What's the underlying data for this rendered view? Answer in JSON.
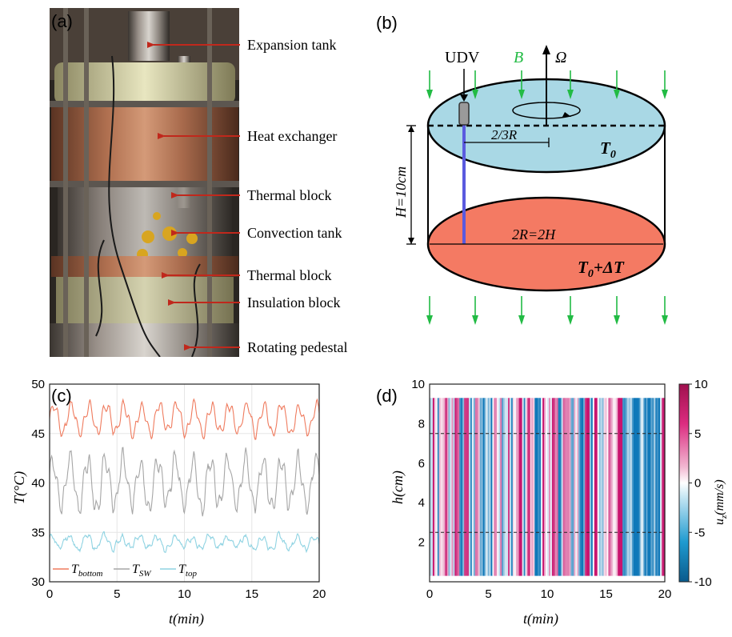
{
  "panels": {
    "a": "(a)",
    "b": "(b)",
    "c": "(c)",
    "d": "(d)"
  },
  "photo_labels": [
    "Expansion tank",
    "Heat exchanger",
    "Thermal block",
    "Convection tank",
    "Thermal block",
    "Insulation block",
    "Rotating pedestal"
  ],
  "schematic": {
    "udv": "UDV",
    "b_field": "B",
    "omega": "Ω",
    "radius": "2/3R",
    "height": "H=10cm",
    "diameter": "2R=2H",
    "t_top": "T",
    "t_top_sub": "0",
    "t_bottom": "T",
    "t_bottom_sub": "0",
    "t_bottom_suffix": "+ΔT"
  },
  "colors": {
    "top_fluid": "#a9d8e5",
    "bottom_fluid": "#f47a63",
    "field_arrow": "#22bb44",
    "probe": "#5a5adf",
    "arrow_red": "#c0281c",
    "t_bottom": "#ef7b5e",
    "t_sw": "#a6a6a6",
    "t_top": "#8fd3e2"
  },
  "chart_data": [
    {
      "type": "line",
      "title": "",
      "xlabel": "t(min)",
      "ylabel": "T(°C)",
      "xlim": [
        0,
        20
      ],
      "ylim": [
        30,
        50
      ],
      "xticks": [
        0,
        5,
        10,
        15,
        20
      ],
      "yticks": [
        30,
        35,
        40,
        45,
        50
      ],
      "grid": true,
      "legend_position": "bottom-left",
      "series": [
        {
          "name": "T_bottom",
          "label_main": "T",
          "label_sub": "bottom",
          "mean": 46.5,
          "amplitude": 1.4,
          "period": 1.3
        },
        {
          "name": "T_SW",
          "label_main": "T",
          "label_sub": "SW",
          "mean": 40.0,
          "amplitude": 2.4,
          "period": 1.3
        },
        {
          "name": "T_top",
          "label_main": "T",
          "label_sub": "top",
          "mean": 34.0,
          "amplitude": 0.6,
          "period": 1.3
        }
      ]
    },
    {
      "type": "heatmap",
      "title": "",
      "xlabel": "t(min)",
      "ylabel": "h(cm)",
      "xlim": [
        0,
        20
      ],
      "ylim": [
        0,
        10
      ],
      "xticks": [
        0,
        5,
        10,
        15,
        20
      ],
      "yticks": [
        2,
        4,
        6,
        8,
        10
      ],
      "data_hrange": [
        0.3,
        9.3
      ],
      "dashed_lines_h": [
        2.5,
        7.5
      ],
      "colorbar": {
        "label": "u_z(mm/s)",
        "label_main": "u",
        "label_sub": "z",
        "label_suffix": "(mm/s)",
        "range": [
          -10,
          10
        ],
        "ticks": [
          -10,
          -5,
          0,
          5,
          10
        ]
      }
    }
  ]
}
